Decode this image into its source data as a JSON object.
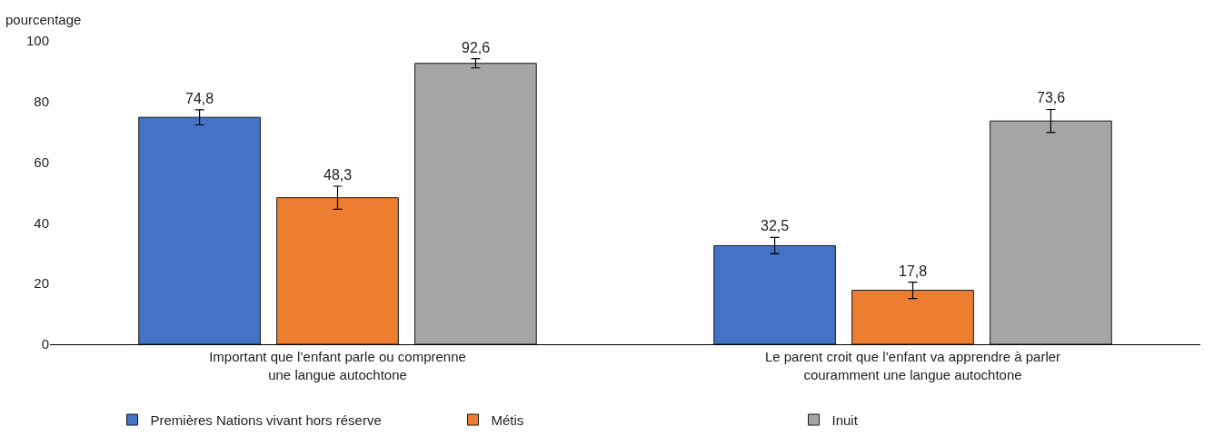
{
  "chart_data": {
    "type": "bar",
    "ylabel": "pourcentage",
    "categories": [
      "Important que l’enfant parle ou comprenne\nune langue autochtone",
      "Le parent croit que l’enfant va apprendre à parler\ncouramment une langue autochtone"
    ],
    "series": [
      {
        "name": "Premières Nations vivant hors réserve",
        "color": "#4472c4",
        "values": [
          74.8,
          32.5
        ],
        "errors": [
          2.5,
          2.7
        ],
        "value_labels": [
          "74,8",
          "32,5"
        ]
      },
      {
        "name": "Métis",
        "color": "#ed7d31",
        "values": [
          48.3,
          17.8
        ],
        "errors": [
          3.8,
          2.7
        ],
        "value_labels": [
          "48,3",
          "17,8"
        ]
      },
      {
        "name": "Inuit",
        "color": "#a5a5a5",
        "values": [
          92.6,
          73.6
        ],
        "errors": [
          1.5,
          3.8
        ],
        "value_labels": [
          "92,6",
          "73,6"
        ]
      }
    ],
    "ylim": [
      0,
      100
    ],
    "yticks": [
      0,
      20,
      40,
      60,
      80,
      100
    ],
    "grid": false,
    "legend": "bottom"
  }
}
